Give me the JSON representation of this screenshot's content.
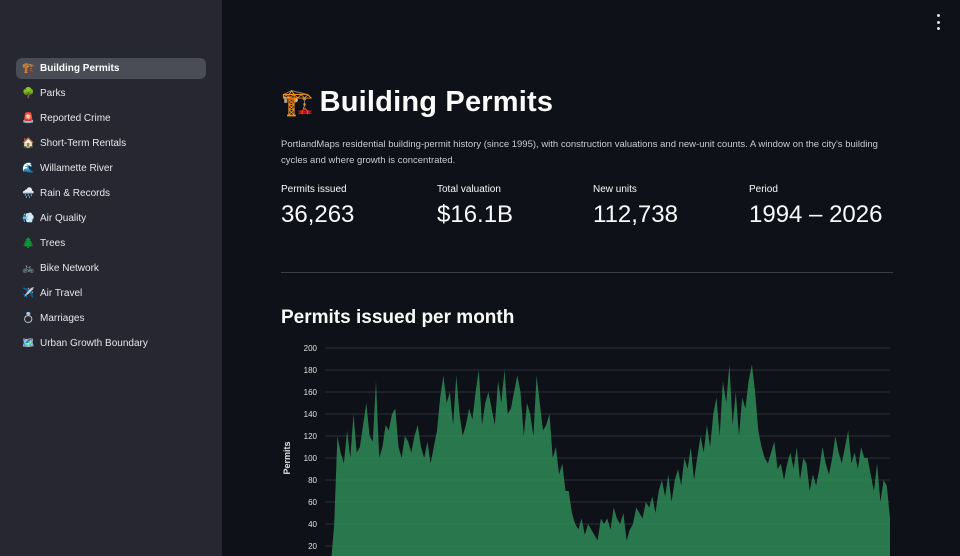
{
  "sidebar": {
    "items": [
      {
        "label": "Building Permits",
        "icon": "🏗️",
        "icon_name": "construction-crane-icon"
      },
      {
        "label": "Parks",
        "icon": "🌳",
        "icon_name": "tree-icon"
      },
      {
        "label": "Reported Crime",
        "icon": "🚨",
        "icon_name": "siren-icon"
      },
      {
        "label": "Short-Term Rentals",
        "icon": "🏠",
        "icon_name": "house-icon"
      },
      {
        "label": "Willamette River",
        "icon": "🌊",
        "icon_name": "wave-icon"
      },
      {
        "label": "Rain & Records",
        "icon": "🌧️",
        "icon_name": "rain-cloud-icon"
      },
      {
        "label": "Air Quality",
        "icon": "💨",
        "icon_name": "wind-icon"
      },
      {
        "label": "Trees",
        "icon": "🌲",
        "icon_name": "evergreen-tree-icon"
      },
      {
        "label": "Bike Network",
        "icon": "🚲",
        "icon_name": "bicycle-icon"
      },
      {
        "label": "Air Travel",
        "icon": "✈️",
        "icon_name": "airplane-icon"
      },
      {
        "label": "Marriages",
        "icon": "💍",
        "icon_name": "ring-icon"
      },
      {
        "label": "Urban Growth Boundary",
        "icon": "🗺️",
        "icon_name": "map-icon"
      }
    ],
    "active_index": 0
  },
  "header": {
    "title": "Building Permits",
    "title_icon": "🏗️"
  },
  "description": "PortlandMaps residential building-permit history (since 1995), with construction valuations and new-unit counts. A window on the city's building cycles and where growth is concentrated.",
  "metrics": [
    {
      "label": "Permits issued",
      "value": "36,263"
    },
    {
      "label": "Total valuation",
      "value": "$16.1B"
    },
    {
      "label": "New units",
      "value": "112,738"
    },
    {
      "label": "Period",
      "value": "1994 – 2026"
    }
  ],
  "colors": {
    "accent": "#2e8b57",
    "background": "#0e1117",
    "sidebar": "#262730"
  },
  "chart_data": {
    "type": "area",
    "title": "Permits issued per month",
    "xlabel": "",
    "ylabel": "Permits",
    "ylim": [
      0,
      200
    ],
    "yticks": [
      20,
      40,
      60,
      80,
      100,
      120,
      140,
      160,
      180,
      200
    ],
    "series": [
      {
        "values": [
          5,
          40,
          120,
          105,
          95,
          125,
          100,
          140,
          105,
          110,
          130,
          150,
          120,
          115,
          170,
          100,
          110,
          130,
          125,
          140,
          145,
          110,
          100,
          120,
          115,
          105,
          120,
          130,
          110,
          100,
          115,
          95,
          110,
          125,
          155,
          175,
          150,
          160,
          130,
          175,
          140,
          120,
          130,
          145,
          135,
          160,
          180,
          130,
          150,
          160,
          145,
          130,
          170,
          150,
          180,
          140,
          145,
          160,
          175,
          160,
          120,
          150,
          140,
          120,
          175,
          150,
          125,
          130,
          140,
          100,
          110,
          85,
          95,
          70,
          70,
          50,
          40,
          35,
          45,
          30,
          40,
          35,
          30,
          25,
          45,
          40,
          45,
          35,
          55,
          45,
          40,
          50,
          25,
          35,
          40,
          55,
          50,
          45,
          60,
          55,
          65,
          50,
          70,
          80,
          65,
          85,
          60,
          80,
          90,
          75,
          100,
          90,
          110,
          80,
          100,
          120,
          105,
          130,
          110,
          140,
          155,
          120,
          170,
          150,
          185,
          130,
          160,
          120,
          155,
          145,
          170,
          185,
          160,
          125,
          110,
          100,
          95,
          105,
          115,
          90,
          95,
          80,
          95,
          105,
          90,
          110,
          80,
          100,
          95,
          70,
          85,
          75,
          90,
          110,
          95,
          85,
          100,
          120,
          105,
          95,
          110,
          125,
          95,
          105,
          90,
          110,
          100,
          100,
          85,
          70,
          95,
          60,
          80,
          75,
          45
        ]
      }
    ]
  }
}
